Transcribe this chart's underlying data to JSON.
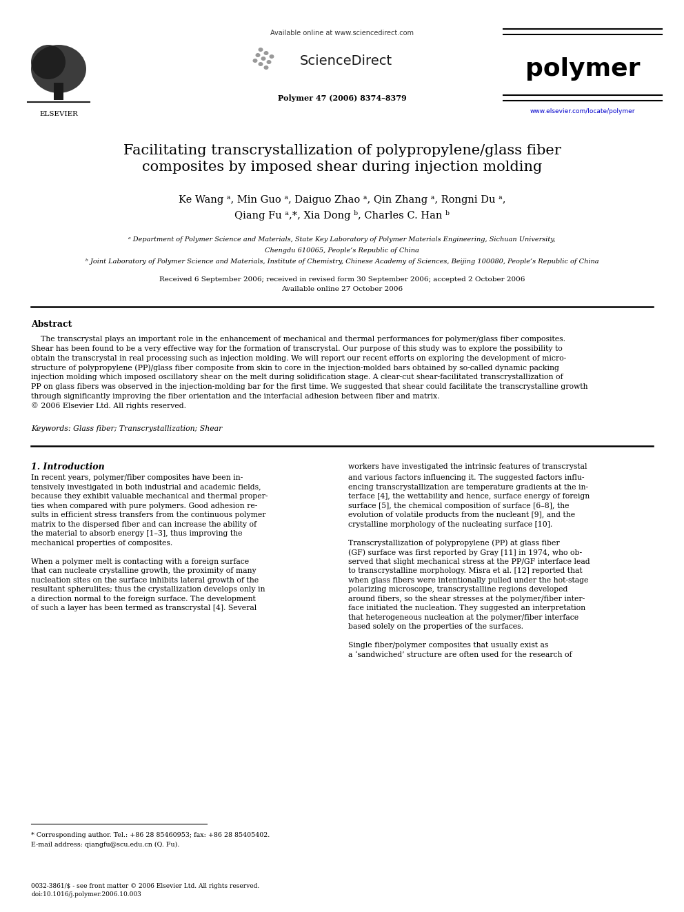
{
  "page_width": 9.92,
  "page_height": 13.23,
  "dpi": 100,
  "bg_color": "#ffffff",
  "header_avail": "Available online at www.sciencedirect.com",
  "header_sd": "ScienceDirect",
  "header_journal": "polymer",
  "header_info": "Polymer 47 (2006) 8374–8379",
  "header_url": "www.elsevier.com/locate/polymer",
  "title_line1": "Facilitating transcrystallization of polypropylene/glass fiber",
  "title_line2": "composites by imposed shear during injection molding",
  "author_line1": "Ke Wang ᵃ, Min Guo ᵃ, Daiguo Zhao ᵃ, Qin Zhang ᵃ, Rongni Du ᵃ,",
  "author_line2": "Qiang Fu ᵃ,*, Xia Dong ᵇ, Charles C. Han ᵇ",
  "aff_a_line1": "ᵃ Department of Polymer Science and Materials, State Key Laboratory of Polymer Materials Engineering, Sichuan University,",
  "aff_a_line2": "Chengdu 610065, People’s Republic of China",
  "aff_b": "ᵇ Joint Laboratory of Polymer Science and Materials, Institute of Chemistry, Chinese Academy of Sciences, Beijing 100080, People’s Republic of China",
  "received_line1": "Received 6 September 2006; received in revised form 30 September 2006; accepted 2 October 2006",
  "received_line2": "Available online 27 October 2006",
  "abstract_title": "Abstract",
  "abstract_lines": [
    "    The transcrystal plays an important role in the enhancement of mechanical and thermal performances for polymer/glass fiber composites.",
    "Shear has been found to be a very effective way for the formation of transcrystal. Our purpose of this study was to explore the possibility to",
    "obtain the transcrystal in real processing such as injection molding. We will report our recent efforts on exploring the development of micro-",
    "structure of polypropylene (PP)/glass fiber composite from skin to core in the injection-molded bars obtained by so-called dynamic packing",
    "injection molding which imposed oscillatory shear on the melt during solidification stage. A clear-cut shear-facilitated transcrystallization of",
    "PP on glass fibers was observed in the injection-molding bar for the first time. We suggested that shear could facilitate the transcrystalline growth",
    "through significantly improving the fiber orientation and the interfacial adhesion between fiber and matrix.",
    "© 2006 Elsevier Ltd. All rights reserved."
  ],
  "keywords": "Keywords: Glass fiber; Transcrystallization; Shear",
  "sec1_title": "1. Introduction",
  "col1_lines": [
    "In recent years, polymer/fiber composites have been in-",
    "tensively investigated in both industrial and academic fields,",
    "because they exhibit valuable mechanical and thermal proper-",
    "ties when compared with pure polymers. Good adhesion re-",
    "sults in efficient stress transfers from the continuous polymer",
    "matrix to the dispersed fiber and can increase the ability of",
    "the material to absorb energy [1–3], thus improving the",
    "mechanical properties of composites.",
    "",
    "When a polymer melt is contacting with a foreign surface",
    "that can nucleate crystalline growth, the proximity of many",
    "nucleation sites on the surface inhibits lateral growth of the",
    "resultant spherulites; thus the crystallization develops only in",
    "a direction normal to the foreign surface. The development",
    "of such a layer has been termed as transcrystal [4]. Several"
  ],
  "col2_line0": "workers have investigated the intrinsic features of transcrystal",
  "col2_lines": [
    "and various factors influencing it. The suggested factors influ-",
    "encing transcrystallization are temperature gradients at the in-",
    "terface [4], the wettability and hence, surface energy of foreign",
    "surface [5], the chemical composition of surface [6–8], the",
    "evolution of volatile products from the nucleant [9], and the",
    "crystalline morphology of the nucleating surface [10].",
    "",
    "Transcrystallization of polypropylene (PP) at glass fiber",
    "(GF) surface was first reported by Gray [11] in 1974, who ob-",
    "served that slight mechanical stress at the PP/GF interface lead",
    "to transcrystalline morphology. Misra et al. [12] reported that",
    "when glass fibers were intentionally pulled under the hot-stage",
    "polarizing microscope, transcrystalline regions developed",
    "around fibers, so the shear stresses at the polymer/fiber inter-",
    "face initiated the nucleation. They suggested an interpretation",
    "that heterogeneous nucleation at the polymer/fiber interface",
    "based solely on the properties of the surfaces.",
    "",
    "Single fiber/polymer composites that usually exist as",
    "a ‘sandwiched’ structure are often used for the research of"
  ],
  "footnote_line1": "* Corresponding author. Tel.: +86 28 85460953; fax: +86 28 85405402.",
  "footnote_line2": "E-mail address: qiangfu@scu.edu.cn (Q. Fu).",
  "bottom_line1": "0032-3861/$ - see front matter © 2006 Elsevier Ltd. All rights reserved.",
  "bottom_line2": "doi:10.1016/j.polymer.2006.10.003"
}
